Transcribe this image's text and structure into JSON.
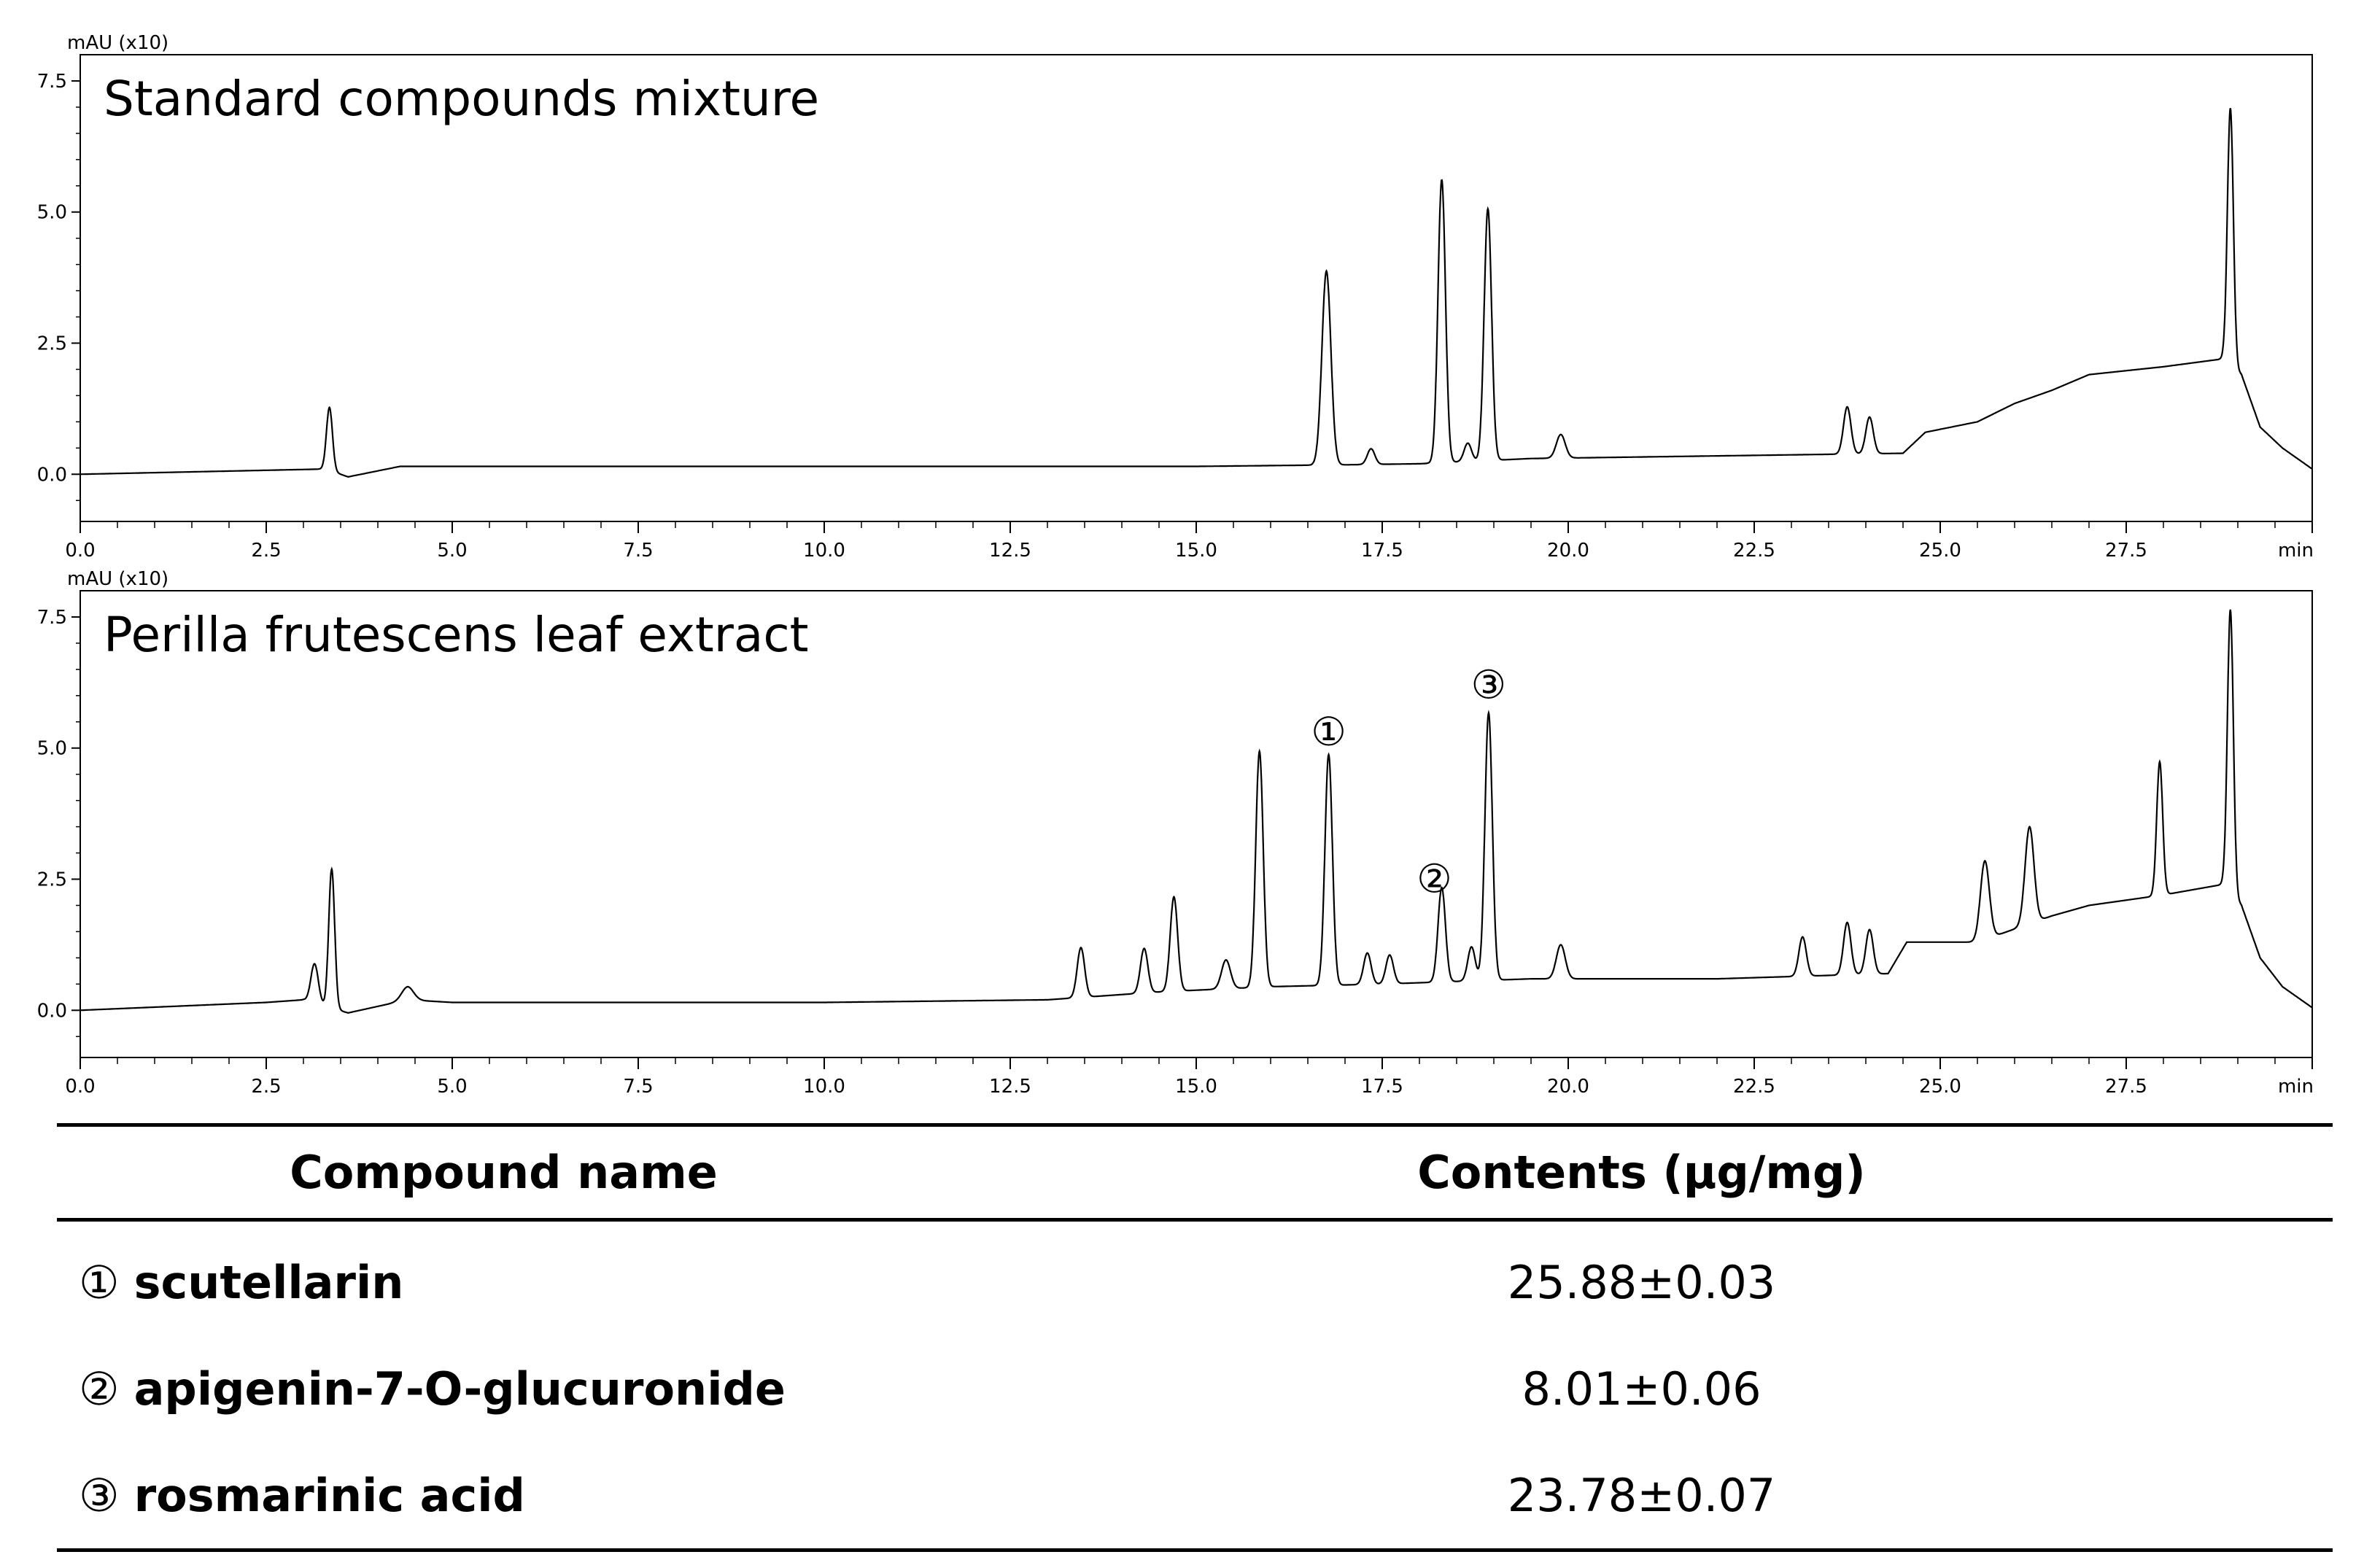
{
  "chart_data": [
    {
      "type": "line",
      "title": "Standard compounds mixture",
      "ylabel": "mAU (x10)",
      "xlabel": "min",
      "xlim": [
        0,
        30
      ],
      "ylim": [
        -0.9,
        8
      ],
      "xticks": [
        "0.0",
        "2.5",
        "5.0",
        "7.5",
        "10.0",
        "12.5",
        "15.0",
        "17.5",
        "20.0",
        "22.5",
        "25.0",
        "27.5"
      ],
      "yticks": [
        "7.5",
        "5.0",
        "2.5",
        "0.0"
      ],
      "baseline": [
        [
          0,
          0.0
        ],
        [
          3.3,
          0.1
        ],
        [
          3.6,
          -0.05
        ],
        [
          4.3,
          0.15
        ],
        [
          5,
          0.15
        ],
        [
          10,
          0.15
        ],
        [
          15,
          0.15
        ],
        [
          17,
          0.18
        ],
        [
          18,
          0.2
        ],
        [
          19.5,
          0.3
        ],
        [
          22,
          0.35
        ],
        [
          24.5,
          0.4
        ],
        [
          24.8,
          0.8
        ],
        [
          25.5,
          1.0
        ],
        [
          26,
          1.35
        ],
        [
          26.5,
          1.6
        ],
        [
          27,
          1.9
        ],
        [
          28,
          2.05
        ],
        [
          28.8,
          2.2
        ],
        [
          29.05,
          1.9
        ],
        [
          29.3,
          0.9
        ],
        [
          29.6,
          0.5
        ],
        [
          30,
          0.1
        ]
      ],
      "peaks": [
        {
          "rt": 3.35,
          "height": 1.2,
          "w": 0.04
        },
        {
          "rt": 16.75,
          "height": 3.7,
          "w": 0.06
        },
        {
          "rt": 17.35,
          "height": 0.3,
          "w": 0.05
        },
        {
          "rt": 18.3,
          "height": 5.4,
          "w": 0.05
        },
        {
          "rt": 18.65,
          "height": 0.35,
          "w": 0.05
        },
        {
          "rt": 18.92,
          "height": 4.8,
          "w": 0.05
        },
        {
          "rt": 19.9,
          "height": 0.45,
          "w": 0.06
        },
        {
          "rt": 23.75,
          "height": 0.9,
          "w": 0.05
        },
        {
          "rt": 24.05,
          "height": 0.7,
          "w": 0.05
        },
        {
          "rt": 28.9,
          "height": 4.9,
          "w": 0.04
        }
      ]
    },
    {
      "type": "line",
      "title": "Perilla frutescens leaf extract",
      "ylabel": "mAU (x10)",
      "xlabel": "min",
      "xlim": [
        0,
        30
      ],
      "ylim": [
        -0.9,
        8
      ],
      "xticks": [
        "0.0",
        "2.5",
        "5.0",
        "7.5",
        "10.0",
        "12.5",
        "15.0",
        "17.5",
        "20.0",
        "22.5",
        "25.0",
        "27.5"
      ],
      "yticks": [
        "7.5",
        "5.0",
        "2.5",
        "0.0"
      ],
      "baseline": [
        [
          0,
          0.0
        ],
        [
          2.5,
          0.15
        ],
        [
          3.0,
          0.2
        ],
        [
          3.6,
          -0.05
        ],
        [
          4.4,
          0.2
        ],
        [
          5,
          0.15
        ],
        [
          10,
          0.15
        ],
        [
          13,
          0.2
        ],
        [
          14.5,
          0.35
        ],
        [
          16,
          0.45
        ],
        [
          17.5,
          0.5
        ],
        [
          18.5,
          0.55
        ],
        [
          19.5,
          0.6
        ],
        [
          22,
          0.6
        ],
        [
          24.3,
          0.7
        ],
        [
          24.55,
          1.3
        ],
        [
          25.5,
          1.3
        ],
        [
          26,
          1.55
        ],
        [
          26.5,
          1.8
        ],
        [
          27,
          2.0
        ],
        [
          28,
          2.2
        ],
        [
          28.8,
          2.4
        ],
        [
          29.05,
          2.0
        ],
        [
          29.3,
          1.0
        ],
        [
          29.6,
          0.45
        ],
        [
          30,
          0.05
        ]
      ],
      "peaks": [
        {
          "rt": 3.15,
          "height": 0.75,
          "w": 0.05
        },
        {
          "rt": 3.38,
          "height": 2.65,
          "w": 0.04
        },
        {
          "rt": 4.4,
          "height": 0.25,
          "w": 0.08
        },
        {
          "rt": 13.45,
          "height": 0.95,
          "w": 0.05
        },
        {
          "rt": 14.3,
          "height": 0.85,
          "w": 0.05
        },
        {
          "rt": 14.7,
          "height": 1.8,
          "w": 0.05
        },
        {
          "rt": 15.4,
          "height": 0.55,
          "w": 0.06
        },
        {
          "rt": 15.85,
          "height": 4.5,
          "w": 0.05
        },
        {
          "rt": 16.78,
          "height": 4.4,
          "w": 0.05
        },
        {
          "rt": 17.3,
          "height": 0.6,
          "w": 0.05
        },
        {
          "rt": 17.6,
          "height": 0.55,
          "w": 0.05
        },
        {
          "rt": 18.3,
          "height": 1.8,
          "w": 0.05
        },
        {
          "rt": 18.7,
          "height": 0.65,
          "w": 0.05
        },
        {
          "rt": 18.93,
          "height": 5.1,
          "w": 0.05
        },
        {
          "rt": 19.9,
          "height": 0.65,
          "w": 0.06
        },
        {
          "rt": 23.15,
          "height": 0.75,
          "w": 0.05
        },
        {
          "rt": 23.75,
          "height": 1.0,
          "w": 0.05
        },
        {
          "rt": 24.05,
          "height": 0.85,
          "w": 0.05
        },
        {
          "rt": 25.6,
          "height": 1.5,
          "w": 0.06
        },
        {
          "rt": 26.2,
          "height": 1.85,
          "w": 0.06
        },
        {
          "rt": 27.95,
          "height": 2.55,
          "w": 0.04
        },
        {
          "rt": 28.9,
          "height": 5.4,
          "w": 0.04
        }
      ],
      "annotations": [
        {
          "text": "①",
          "x": 16.78,
          "y": 5.3
        },
        {
          "text": "②",
          "x": 18.2,
          "y": 2.5
        },
        {
          "text": "③",
          "x": 18.93,
          "y": 6.2
        }
      ]
    }
  ],
  "table": {
    "headers": [
      "Compound name",
      "Contents (μg/mg)"
    ],
    "rows": [
      {
        "mark": "①",
        "name": "scutellarin",
        "value": "25.88±0.03"
      },
      {
        "mark": "②",
        "name": "apigenin-7-O-glucuronide",
        "value": "8.01±0.06"
      },
      {
        "mark": "③",
        "name": "rosmarinic acid",
        "value": "23.78±0.07"
      }
    ]
  }
}
